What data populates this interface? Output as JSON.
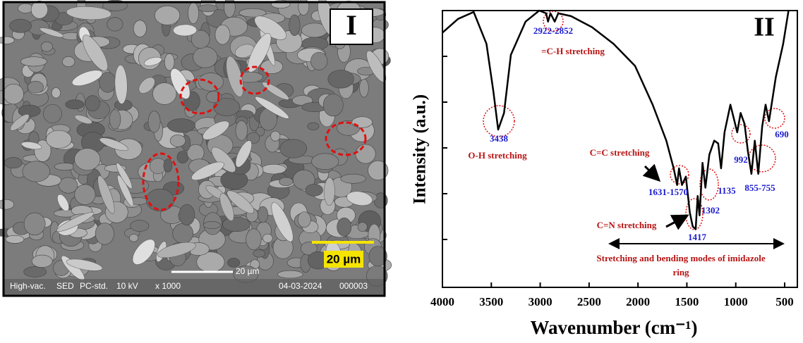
{
  "image_panel": {
    "label": "I",
    "scale_badge": "20 µm",
    "scale_bar": "20 µm",
    "info_bar": [
      "High-vac.",
      "SED",
      "PC-std.",
      "10 kV",
      "x 1000",
      "04-03-2024",
      "000003"
    ]
  },
  "chart_data": {
    "type": "line",
    "panel_label": "II",
    "x_label": "Wavenumber (cm⁻¹)",
    "y_label": "Intensity (a.u.)",
    "xlim": [
      4000,
      370
    ],
    "xticks": [
      4000,
      3500,
      3000,
      2500,
      2000,
      1500,
      1000,
      500
    ],
    "ylim": [
      0,
      100
    ],
    "color": "#000000",
    "x": [
      4000,
      3840,
      3680,
      3550,
      3480,
      3430,
      3370,
      3300,
      3150,
      3010,
      2940,
      2920,
      2895,
      2852,
      2815,
      2685,
      2470,
      2250,
      2030,
      1850,
      1710,
      1635,
      1600,
      1580,
      1550,
      1510,
      1470,
      1440,
      1410,
      1390,
      1370,
      1340,
      1310,
      1270,
      1220,
      1180,
      1150,
      1115,
      1055,
      985,
      950,
      910,
      875,
      840,
      805,
      770,
      730,
      695,
      660,
      590,
      515,
      460
    ],
    "values": [
      92,
      97,
      99.5,
      88,
      71,
      57,
      63,
      84,
      96,
      100,
      99,
      96,
      99,
      96,
      99,
      98,
      94,
      88,
      80,
      66,
      53,
      43,
      37,
      43,
      37,
      40,
      27,
      22,
      21,
      33,
      26,
      45,
      36,
      48,
      53,
      52,
      43,
      56,
      66,
      56,
      63,
      59,
      49,
      41,
      53,
      41,
      58,
      66,
      60,
      76,
      88,
      100
    ],
    "annotations": [
      "3438",
      "2922-2852",
      "=C-H  stretching",
      "O-H stretching",
      "C=C stretching",
      "1631-1570",
      "1135",
      "992",
      "855-755",
      "690",
      "1302",
      "1417",
      "C=N stretching",
      "Stretching and bending modes of imidazole",
      "ring"
    ]
  }
}
